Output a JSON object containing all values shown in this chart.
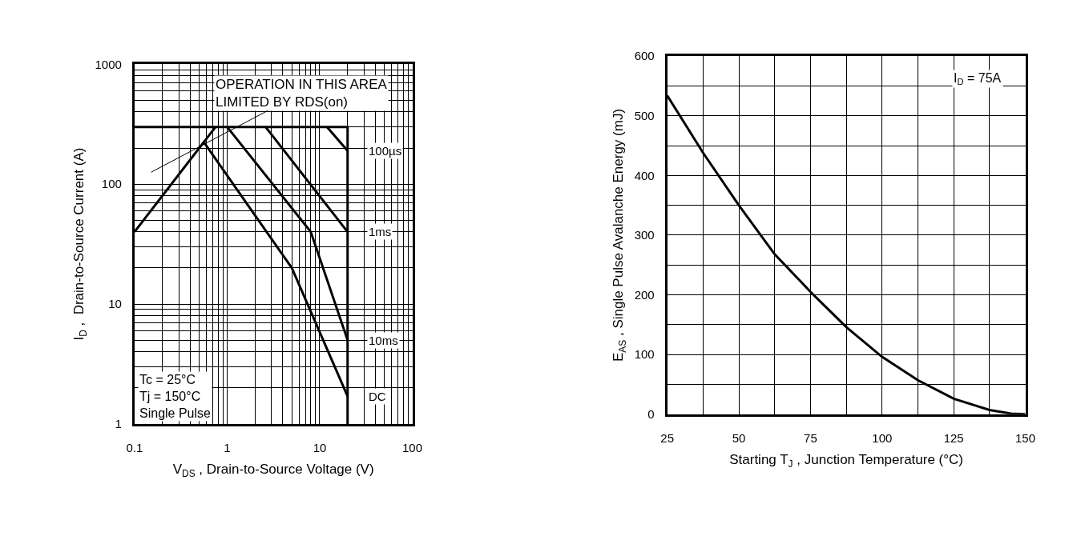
{
  "chart_data": [
    {
      "type": "line",
      "xlabel": "V$_{DS}$ , Drain-to-Source Voltage (V)",
      "ylabel": "I$_{D}$ ,  Drain-to-Source Current (A)",
      "log": "xy",
      "grid": true,
      "legend": false,
      "marker": "none",
      "line_style": "solid",
      "xlim": [
        0.1,
        100
      ],
      "ylim": [
        1,
        1000
      ],
      "xticks": [
        0.1,
        {
          "value": 0.2,
          "label": null
        },
        {
          "value": 0.3,
          "label": null
        },
        {
          "value": 0.4,
          "label": null
        },
        {
          "value": 0.5,
          "label": null
        },
        {
          "value": 0.6,
          "label": null
        },
        {
          "value": 0.7,
          "label": null
        },
        {
          "value": 0.8,
          "label": null
        },
        {
          "value": 0.9,
          "label": null
        },
        1,
        {
          "value": 2,
          "label": null
        },
        {
          "value": 3,
          "label": null
        },
        {
          "value": 4,
          "label": null
        },
        {
          "value": 5,
          "label": null
        },
        {
          "value": 6,
          "label": null
        },
        {
          "value": 7,
          "label": null
        },
        {
          "value": 8,
          "label": null
        },
        {
          "value": 9,
          "label": null
        },
        10,
        {
          "value": 20,
          "label": null
        },
        {
          "value": 30,
          "label": null
        },
        {
          "value": 40,
          "label": null
        },
        {
          "value": 50,
          "label": null
        },
        {
          "value": 60,
          "label": null
        },
        {
          "value": 70,
          "label": null
        },
        {
          "value": 80,
          "label": null
        },
        {
          "value": 90,
          "label": null
        },
        100
      ],
      "yticks": [
        1,
        {
          "value": 2,
          "label": null
        },
        {
          "value": 3,
          "label": null
        },
        {
          "value": 4,
          "label": null
        },
        {
          "value": 5,
          "label": null
        },
        {
          "value": 6,
          "label": null
        },
        {
          "value": 7,
          "label": null
        },
        {
          "value": 8,
          "label": null
        },
        {
          "value": 9,
          "label": null
        },
        10,
        {
          "value": 20,
          "label": null
        },
        {
          "value": 30,
          "label": null
        },
        {
          "value": 40,
          "label": null
        },
        {
          "value": 50,
          "label": null
        },
        {
          "value": 60,
          "label": null
        },
        {
          "value": 70,
          "label": null
        },
        {
          "value": 80,
          "label": null
        },
        {
          "value": 90,
          "label": null
        },
        100,
        {
          "value": 200,
          "label": null
        },
        {
          "value": 300,
          "label": null
        },
        {
          "value": 400,
          "label": null
        },
        {
          "value": 500,
          "label": null
        },
        {
          "value": 600,
          "label": null
        },
        {
          "value": 700,
          "label": null
        },
        {
          "value": 800,
          "label": null
        },
        {
          "value": 900,
          "label": null
        },
        1000
      ],
      "series": [
        {
          "color": "#000000",
          "x": [
            0.1,
            20,
            20
          ],
          "values": [
            300,
            300,
            1
          ]
        },
        {
          "color": "#000000",
          "x": [
            0.1,
            0.75
          ],
          "values": [
            40,
            300
          ]
        },
        {
          "name": "100µs",
          "color": "#000000",
          "x": [
            12,
            20
          ],
          "values": [
            300,
            190
          ]
        },
        {
          "name": "1ms",
          "color": "#000000",
          "x": [
            2.6,
            20
          ],
          "values": [
            300,
            40
          ]
        },
        {
          "name": "10ms",
          "color": "#000000",
          "x": [
            1.0,
            8,
            20
          ],
          "values": [
            300,
            40,
            5
          ]
        },
        {
          "name": "DC",
          "color": "#000000",
          "x": [
            0.56,
            5,
            20
          ],
          "values": [
            224,
            20,
            1.7
          ]
        }
      ],
      "annotations": [
        "OPERATION IN THIS AREA\nLIMITED BY RDS(on)",
        "Tc = 25°C\nTj = 150°C\nSingle Pulse"
      ]
    },
    {
      "type": "line",
      "xlabel": "Starting T$_{J}$ , Junction Temperature (°C)",
      "ylabel": "E$_{AS}$ , Single Pulse Avalanche Energy (mJ)",
      "grid": true,
      "legend": false,
      "marker": "none",
      "line_style": "solid",
      "xlim": [
        25,
        150
      ],
      "ylim": [
        0,
        600
      ],
      "xticks": [
        25,
        {
          "value": 37.5,
          "label": null
        },
        50,
        {
          "value": 62.5,
          "label": null
        },
        75,
        {
          "value": 87.5,
          "label": null
        },
        100,
        {
          "value": 112.5,
          "label": null
        },
        125,
        {
          "value": 137.5,
          "label": null
        },
        150
      ],
      "yticks": [
        0,
        {
          "value": 50,
          "label": null
        },
        100,
        {
          "value": 150,
          "label": null
        },
        200,
        {
          "value": 250,
          "label": null
        },
        300,
        {
          "value": 350,
          "label": null
        },
        400,
        {
          "value": 450,
          "label": null
        },
        500,
        {
          "value": 550,
          "label": null
        },
        600
      ],
      "series": [
        {
          "color": "#000000",
          "x": [
            25,
            37.5,
            50,
            62.5,
            75,
            87.5,
            100,
            112.5,
            125,
            137.5,
            145,
            150
          ],
          "values": [
            534,
            438,
            350,
            268,
            205,
            146,
            96,
            57,
            26,
            7,
            1,
            0
          ]
        }
      ],
      "annotations": [
        "I$_{D}$ = 75A"
      ]
    }
  ]
}
